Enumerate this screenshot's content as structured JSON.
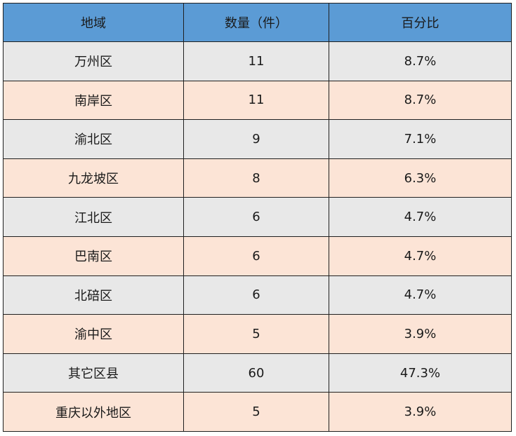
{
  "chart_data": {
    "type": "table",
    "columns": [
      "地域",
      "数量（件）",
      "百分比"
    ],
    "rows": [
      {
        "region": "万州区",
        "count": "11",
        "percent": "8.7%"
      },
      {
        "region": "南岸区",
        "count": "11",
        "percent": "8.7%"
      },
      {
        "region": "渝北区",
        "count": "9",
        "percent": "7.1%"
      },
      {
        "region": "九龙坡区",
        "count": "8",
        "percent": "6.3%"
      },
      {
        "region": "江北区",
        "count": "6",
        "percent": "4.7%"
      },
      {
        "region": "巴南区",
        "count": "6",
        "percent": "4.7%"
      },
      {
        "region": "北碚区",
        "count": "6",
        "percent": "4.7%"
      },
      {
        "region": "渝中区",
        "count": "5",
        "percent": "3.9%"
      },
      {
        "region": "其它区县",
        "count": "60",
        "percent": "47.3%"
      },
      {
        "region": "重庆以外地区",
        "count": "5",
        "percent": "3.9%"
      }
    ]
  },
  "colors": {
    "header_bg": "#5b9bd5",
    "row_odd_bg": "#e8e8e8",
    "row_even_bg": "#fce4d6",
    "border": "#1f1f1f"
  }
}
